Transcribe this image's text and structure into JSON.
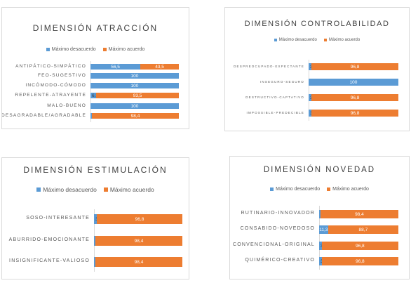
{
  "colors": {
    "desacuerdo": "#5b9bd5",
    "acuerdo": "#ed7d31"
  },
  "chart_data": [
    {
      "type": "bar",
      "orientation": "horizontal",
      "stacked": true,
      "title": "DIMENSIÓN ATRACCIÓN",
      "legend_position": "top",
      "xlim": [
        0,
        100
      ],
      "categories": [
        "ANTIPÁTICO-SIMPÁTICO",
        "FEO-SUGESTIVO",
        "INCÓMODO-CÓMODO",
        "REPELENTE-ATRAYENTE",
        "MALO-BUENO",
        "DESAGRADABLE/AGRADABLE"
      ],
      "series": [
        {
          "name": "Máximo desacuerdo",
          "values": [
            56.5,
            100,
            100,
            6.5,
            100,
            1.6
          ],
          "labels": [
            "56,5",
            "100",
            "100",
            "6,5",
            "100",
            "1,6"
          ]
        },
        {
          "name": "Máximo acuerdo",
          "values": [
            43.5,
            0,
            0,
            93.5,
            0,
            98.4
          ],
          "labels": [
            "43,5",
            "",
            "",
            "93,5",
            "",
            "98,4"
          ]
        }
      ]
    },
    {
      "type": "bar",
      "orientation": "horizontal",
      "stacked": true,
      "title": "DIMENSIÓN CONTROLABILIDAD",
      "legend_position": "top",
      "xlim": [
        0,
        100
      ],
      "categories": [
        "DESPREOCUPADO-EXPECTANTE",
        "INSEGURO-SEGURO",
        "DESTRUCTIVO-CAPTATIVO",
        "IMPOSSIBLE-PREDECIBLE"
      ],
      "series": [
        {
          "name": "Máximo desacuerdo",
          "values": [
            3.2,
            100,
            3.2,
            3.2
          ],
          "labels": [
            "3,2",
            "100",
            "3,2",
            "3,2"
          ]
        },
        {
          "name": "Máximo acuerdo",
          "values": [
            96.8,
            0,
            96.8,
            96.8
          ],
          "labels": [
            "96,8",
            "",
            "96,8",
            "96,8"
          ]
        }
      ]
    },
    {
      "type": "bar",
      "orientation": "horizontal",
      "stacked": true,
      "title": "DIMENSIÓN ESTIMULACIÓN",
      "legend_position": "top",
      "xlim": [
        0,
        100
      ],
      "categories": [
        "SOSO-INTERESANTE",
        "ABURRIDO-EMOCIONANTE",
        "INSIGNIFICANTE-VALIOSO"
      ],
      "series": [
        {
          "name": "Máximo desacuerdo",
          "values": [
            3.2,
            1.6,
            1.6
          ],
          "labels": [
            "3,2",
            "1,6",
            "1,6"
          ]
        },
        {
          "name": "Máximo acuerdo",
          "values": [
            96.8,
            98.4,
            98.4
          ],
          "labels": [
            "96,8",
            "98,4",
            "98,4"
          ]
        }
      ]
    },
    {
      "type": "bar",
      "orientation": "horizontal",
      "stacked": true,
      "title": "DIMENSIÓN NOVEDAD",
      "legend_position": "top",
      "xlim": [
        0,
        100
      ],
      "categories": [
        "RUTINARIO-INNOVADOR",
        "CONSABIDO-NOVEDOSO",
        "CONVENCIONAL-ORIGINAL",
        "QUIMÉRICO-CREATIVO"
      ],
      "series": [
        {
          "name": "Máximo desacuerdo",
          "values": [
            1.6,
            11.3,
            3.2,
            3.2
          ],
          "labels": [
            "1,6",
            "11,3",
            "3,2",
            "3,2"
          ]
        },
        {
          "name": "Máximo acuerdo",
          "values": [
            98.4,
            88.7,
            96.8,
            96.8
          ],
          "labels": [
            "98,4",
            "88,7",
            "96,8",
            "96,8"
          ]
        }
      ]
    }
  ]
}
